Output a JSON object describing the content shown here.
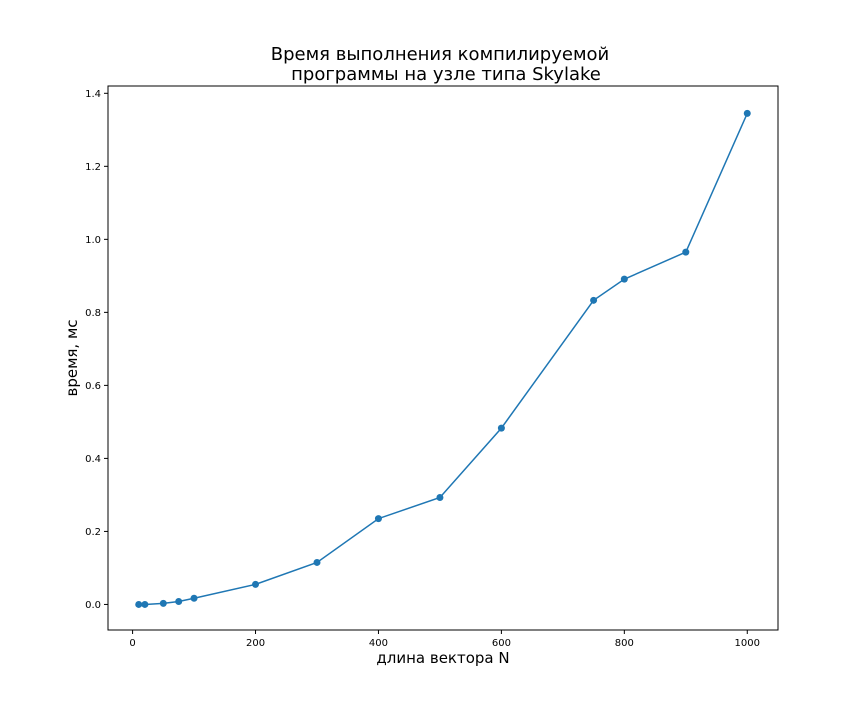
{
  "chart_data": {
    "type": "line",
    "title_lines": [
      "Время выполнения компилируемой",
      "программы на узле типа Skylake"
    ],
    "xlabel": "длина вектора N",
    "ylabel": "время, мс",
    "xlim": [
      -40,
      1050
    ],
    "ylim": [
      -0.07,
      1.42
    ],
    "x_ticks": [
      0,
      200,
      400,
      600,
      800,
      1000
    ],
    "y_ticks": [
      0.0,
      0.2,
      0.4,
      0.6,
      0.8,
      1.0,
      1.2,
      1.4
    ],
    "x_tick_labels": [
      "0",
      "200",
      "400",
      "600",
      "800",
      "1000"
    ],
    "y_tick_labels": [
      "0.0",
      "0.2",
      "0.4",
      "0.6",
      "0.8",
      "1.0",
      "1.2",
      "1.4"
    ],
    "grid": false,
    "series": [
      {
        "color": "#1f77b4",
        "marker": "circle",
        "x": [
          10,
          20,
          50,
          75,
          100,
          200,
          300,
          400,
          500,
          600,
          750,
          800,
          900,
          1000
        ],
        "y": [
          0.0,
          0.0,
          0.003,
          0.008,
          0.017,
          0.055,
          0.115,
          0.235,
          0.293,
          0.483,
          0.833,
          0.891,
          0.965,
          1.345
        ]
      }
    ]
  }
}
